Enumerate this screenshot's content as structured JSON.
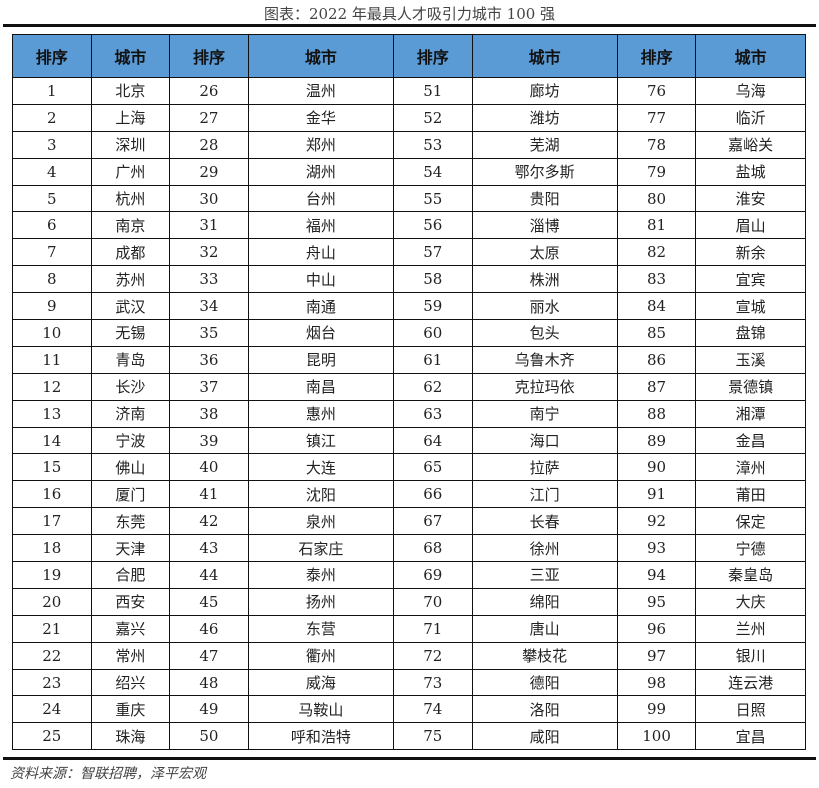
{
  "title": "图表：2022 年最具人才吸引力城市 100 强",
  "headers": [
    "排序",
    "城市",
    "排序",
    "城市",
    "排序",
    "城市",
    "排序",
    "城市"
  ],
  "cities": [
    "北京",
    "上海",
    "深圳",
    "广州",
    "杭州",
    "南京",
    "成都",
    "苏州",
    "武汉",
    "无锡",
    "青岛",
    "长沙",
    "济南",
    "宁波",
    "佛山",
    "厦门",
    "东莞",
    "天津",
    "合肥",
    "西安",
    "嘉兴",
    "常州",
    "绍兴",
    "重庆",
    "珠海",
    "温州",
    "金华",
    "郑州",
    "湖州",
    "台州",
    "福州",
    "舟山",
    "中山",
    "南通",
    "烟台",
    "昆明",
    "南昌",
    "惠州",
    "镇江",
    "大连",
    "沈阳",
    "泉州",
    "石家庄",
    "泰州",
    "扬州",
    "东营",
    "衢州",
    "威海",
    "马鞍山",
    "呼和浩特",
    "廊坊",
    "潍坊",
    "芜湖",
    "鄂尔多斯",
    "贵阳",
    "淄博",
    "太原",
    "株洲",
    "丽水",
    "包头",
    "乌鲁木齐",
    "克拉玛依",
    "南宁",
    "海口",
    "拉萨",
    "江门",
    "长春",
    "徐州",
    "三亚",
    "绵阳",
    "唐山",
    "攀枝花",
    "德阳",
    "洛阳",
    "咸阳",
    "乌海",
    "临沂",
    "嘉峪关",
    "盐城",
    "淮安",
    "眉山",
    "新余",
    "宜宾",
    "宣城",
    "盘锦",
    "玉溪",
    "景德镇",
    "湘潭",
    "金昌",
    "漳州",
    "莆田",
    "保定",
    "宁德",
    "秦皇岛",
    "大庆",
    "兰州",
    "银川",
    "连云港",
    "日照",
    "宜昌"
  ],
  "source": "资料来源：智联招聘，泽平宏观",
  "colors": {
    "header_bg": "#5b9bd5"
  }
}
